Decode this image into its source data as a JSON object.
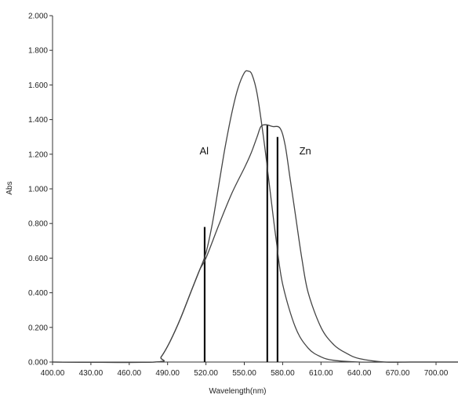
{
  "chart_data": {
    "type": "line",
    "xlabel": "Wavelength(nm)",
    "ylabel": "Abs",
    "xlim": [
      400,
      720
    ],
    "ylim": [
      0,
      2.0
    ],
    "x_ticks": [
      "400.00",
      "430.00",
      "460.00",
      "490.00",
      "520.00",
      "550.00",
      "580.00",
      "610.00",
      "640.00",
      "670.00",
      "700.00"
    ],
    "y_ticks": [
      "0.000",
      "0.200",
      "0.400",
      "0.600",
      "0.800",
      "1.000",
      "1.200",
      "1.400",
      "1.600",
      "1.800",
      "2.000"
    ],
    "grid": false,
    "series": [
      {
        "name": "Al",
        "x": [
          400,
          480,
          485,
          492,
          500,
          508,
          515,
          520,
          525,
          530,
          535,
          540,
          545,
          550,
          553,
          556,
          560,
          565,
          570,
          575,
          580,
          590,
          600,
          610,
          620,
          640,
          660,
          680,
          700,
          720
        ],
        "y": [
          0,
          0,
          0.03,
          0.12,
          0.25,
          0.4,
          0.53,
          0.63,
          0.8,
          1.02,
          1.24,
          1.43,
          1.58,
          1.67,
          1.68,
          1.66,
          1.55,
          1.3,
          1.0,
          0.7,
          0.45,
          0.2,
          0.08,
          0.03,
          0.01,
          0,
          0,
          0,
          0,
          0
        ]
      },
      {
        "name": "Zn",
        "x": [
          400,
          480,
          485,
          492,
          500,
          508,
          515,
          520,
          530,
          540,
          550,
          555,
          560,
          563,
          567,
          572,
          578,
          582,
          586,
          590,
          595,
          600,
          610,
          620,
          630,
          640,
          660,
          680,
          700,
          720
        ],
        "y": [
          0,
          0,
          0.03,
          0.12,
          0.25,
          0.4,
          0.53,
          0.6,
          0.79,
          0.97,
          1.12,
          1.2,
          1.3,
          1.36,
          1.37,
          1.36,
          1.35,
          1.25,
          1.05,
          0.85,
          0.6,
          0.4,
          0.2,
          0.1,
          0.05,
          0.02,
          0,
          0,
          0,
          0
        ]
      }
    ],
    "markers": [
      {
        "x": 519,
        "y_bottom": 0,
        "y_top": 0.78
      },
      {
        "x": 568,
        "y_bottom": 0,
        "y_top": 1.37
      },
      {
        "x": 576,
        "y_bottom": 0,
        "y_top": 1.3
      }
    ],
    "annotations": [
      {
        "text": "Al",
        "x": 515,
        "y": 1.2
      },
      {
        "text": "Zn",
        "x": 593,
        "y": 1.2
      }
    ]
  }
}
